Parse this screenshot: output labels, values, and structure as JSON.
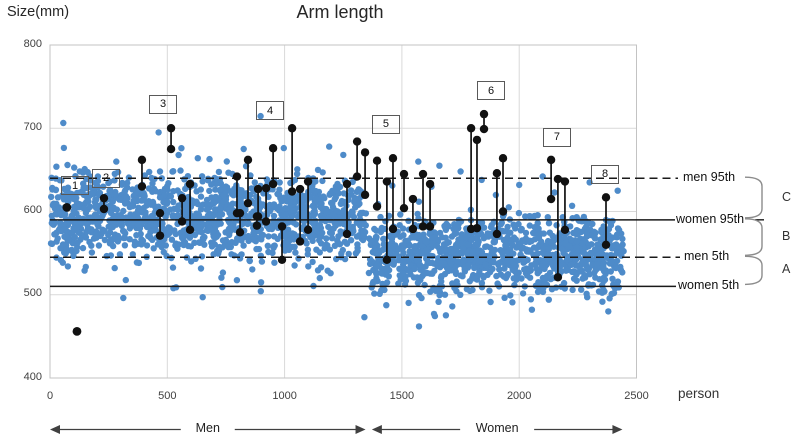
{
  "title": "Arm length",
  "y_axis_title": "Size(mm)",
  "x_axis_title": "person",
  "colors": {
    "point_blue": "#4E8BC9",
    "point_black": "#111111",
    "grid": "#D9D9D9",
    "plot_border": "#C3C3C3",
    "ref_line": "#1A1A1A",
    "brace": "#8C8C8C",
    "arrow": "#404040",
    "text_dark": "#333333"
  },
  "chart_data": {
    "type": "scatter",
    "title": "Arm length",
    "xlabel": "person",
    "ylabel": "Size(mm)",
    "xlim": [
      0,
      2500
    ],
    "ylim": [
      400,
      800
    ],
    "x_ticks": [
      "0",
      "500",
      "1000",
      "1500",
      "2000",
      "2500"
    ],
    "y_ticks": [
      "800",
      "700",
      "600",
      "500",
      "400"
    ],
    "grid": true,
    "legend": "none",
    "seed": 20,
    "groups": [
      {
        "name": "Men",
        "x_range": [
          2,
          1350
        ],
        "count": 1300,
        "mean_mm": 593,
        "sd_mm": 26
      },
      {
        "name": "Women",
        "x_range": [
          1358,
          2448
        ],
        "count": 1060,
        "mean_mm": 549,
        "sd_mm": 23
      }
    ],
    "extra_blue_points": [
      [
        463,
        695
      ],
      [
        560,
        676
      ],
      [
        630,
        664
      ],
      [
        680,
        663
      ],
      [
        1190,
        678
      ],
      [
        1250,
        668
      ],
      [
        1570,
        660
      ],
      [
        1660,
        655
      ],
      [
        1750,
        648
      ],
      [
        1840,
        638
      ],
      [
        2000,
        632
      ],
      [
        2100,
        642
      ],
      [
        2300,
        635
      ],
      [
        2420,
        625
      ],
      [
        651,
        497
      ],
      [
        1340,
        473
      ],
      [
        1637,
        477
      ],
      [
        2054,
        482
      ],
      [
        2126,
        494
      ],
      [
        2290,
        497
      ],
      [
        2380,
        480
      ],
      [
        900,
        515
      ],
      [
        1150,
        520
      ]
    ],
    "black_single_points": [
      [
        72,
        605
      ],
      [
        115,
        456
      ]
    ],
    "paired_points": [
      [
        230,
        616,
        603
      ],
      [
        392,
        662,
        630
      ],
      [
        516,
        700,
        675
      ],
      [
        469,
        598,
        571
      ],
      [
        563,
        616,
        588
      ],
      [
        597,
        633,
        578
      ],
      [
        797,
        642,
        598
      ],
      [
        810,
        598,
        575
      ],
      [
        844,
        662,
        610
      ],
      [
        882,
        594,
        583
      ],
      [
        887,
        627,
        594
      ],
      [
        921,
        628,
        588
      ],
      [
        951,
        676,
        633
      ],
      [
        989,
        582,
        542
      ],
      [
        1032,
        700,
        624
      ],
      [
        1066,
        627,
        564
      ],
      [
        1100,
        636,
        578
      ],
      [
        1266,
        633,
        573
      ],
      [
        1309,
        684,
        642
      ],
      [
        1343,
        671,
        620
      ],
      [
        1394,
        661,
        606
      ],
      [
        1436,
        636,
        542
      ],
      [
        1462,
        664,
        579
      ],
      [
        1509,
        645,
        604
      ],
      [
        1547,
        615,
        579
      ],
      [
        1590,
        645,
        582
      ],
      [
        1620,
        633,
        582
      ],
      [
        1795,
        700,
        579
      ],
      [
        1820,
        686,
        580
      ],
      [
        1850,
        717,
        699
      ],
      [
        1905,
        646,
        573
      ],
      [
        1931,
        664,
        600
      ],
      [
        2136,
        662,
        615
      ],
      [
        2165,
        639,
        521
      ],
      [
        2195,
        636,
        578
      ],
      [
        2370,
        617,
        560
      ]
    ],
    "reference_lines": [
      {
        "label": "men 95th",
        "value_mm": 640,
        "style": "dashed"
      },
      {
        "label": "women 95th",
        "value_mm": 590,
        "style": "solid"
      },
      {
        "label": "men 5th",
        "value_mm": 545,
        "style": "dashed"
      },
      {
        "label": "women 5th",
        "value_mm": 510,
        "style": "solid"
      }
    ],
    "range_brackets": [
      {
        "label": "C",
        "from_mm": 640,
        "to_mm": 590
      },
      {
        "label": "B",
        "from_mm": 590,
        "to_mm": 545
      },
      {
        "label": "A",
        "from_mm": 545,
        "to_mm": 510
      }
    ],
    "annotation_boxes": [
      {
        "label": "1",
        "person": 107,
        "mm": 631
      },
      {
        "label": "2",
        "person": 239,
        "mm": 640
      },
      {
        "label": "3",
        "person": 482,
        "mm": 729
      },
      {
        "label": "4",
        "person": 938,
        "mm": 721
      },
      {
        "label": "5",
        "person": 1432,
        "mm": 705
      },
      {
        "label": "6",
        "person": 1880,
        "mm": 745
      },
      {
        "label": "7",
        "person": 2161,
        "mm": 689
      },
      {
        "label": "8",
        "person": 2366,
        "mm": 645
      }
    ],
    "group_axis_labels": [
      {
        "label": "Men",
        "x_range": [
          0,
          1345
        ]
      },
      {
        "label": "Women",
        "x_range": [
          1372,
          2440
        ]
      }
    ]
  }
}
